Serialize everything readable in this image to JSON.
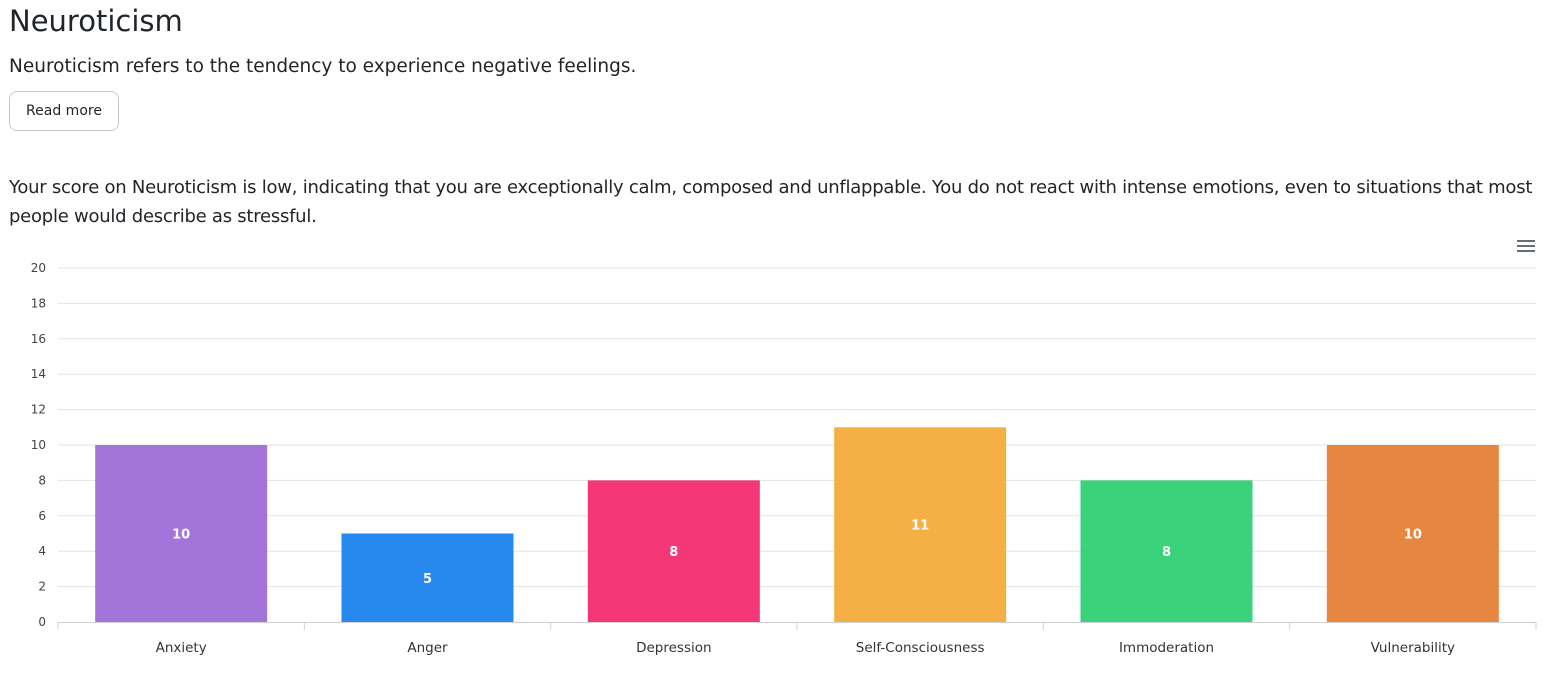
{
  "section": {
    "title": "Neuroticism",
    "intro": "Neuroticism refers to the tendency to experience negative feelings.",
    "read_more_label": "Read more",
    "result_text": "Your score on Neuroticism is low, indicating that you are exceptionally calm, composed and unflappable. You do not react with intense emotions, even to situations that most people would describe as stressful."
  },
  "chart_menu": {
    "icon": "hamburger-menu-icon"
  },
  "chart_data": {
    "type": "bar",
    "categories": [
      "Anxiety",
      "Anger",
      "Depression",
      "Self-Consciousness",
      "Immoderation",
      "Vulnerability"
    ],
    "values": [
      10,
      5,
      8,
      11,
      8,
      10
    ],
    "colors": [
      "#9966d6",
      "#0f7beb",
      "#f42168",
      "#f4a731",
      "#25cd6c",
      "#e27a2c"
    ],
    "ylim": [
      0,
      20
    ],
    "yticks": [
      0,
      2,
      4,
      6,
      8,
      10,
      12,
      14,
      16,
      18,
      20
    ],
    "grid": true,
    "data_labels": true,
    "legend": "none",
    "title": "",
    "xlabel": "",
    "ylabel": ""
  }
}
